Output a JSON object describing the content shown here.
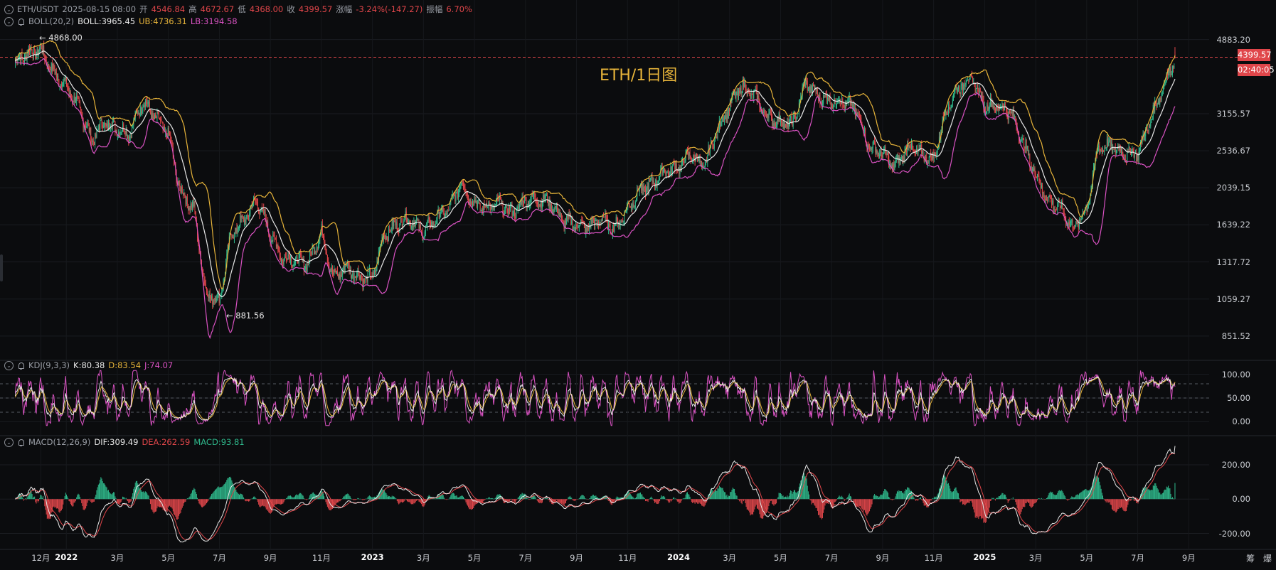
{
  "header": {
    "symbol": "ETH/USDT",
    "datetime": "2025-08-15 08:00",
    "open_label": "开",
    "open": "4546.84",
    "high_label": "高",
    "high": "4672.67",
    "low_label": "低",
    "low": "4368.00",
    "close_label": "收",
    "close": "4399.57",
    "chg_label": "涨幅",
    "chg": "-3.24%(-147.27)",
    "amp_label": "振幅",
    "amp": "6.70%"
  },
  "boll": {
    "name": "BOLL(20,2)",
    "mid": "BOLL:3965.45",
    "ub": "UB:4736.31",
    "lb": "LB:3194.58"
  },
  "kdj": {
    "name": "KDJ(9,3,3)",
    "k": "K:80.38",
    "d": "D:83.54",
    "j": "J:74.07"
  },
  "macd": {
    "name": "MACD(12,26,9)",
    "dif": "DIF:309.49",
    "dea": "DEA:262.59",
    "hist": "MACD:93.81"
  },
  "title": "ETH/1日图",
  "extremes": {
    "high": "4868.00",
    "low": "881.56"
  },
  "price_tag": "4399.57",
  "countdown_tag": "02:40:05",
  "corner_labels": [
    "筹",
    "爆"
  ],
  "colors": {
    "up": "#2fb98c",
    "down": "#e0464a",
    "boll_mid": "#e8e8e8",
    "boll_ub": "#e7b43a",
    "boll_lb": "#d952c2",
    "bg": "#0b0c0e"
  },
  "chart_data": [
    {
      "type": "candlestick",
      "pane": "main",
      "y_scale": "log",
      "y_ticks": [
        "4883.20",
        "3155.57",
        "2536.67",
        "2039.15",
        "1639.22",
        "1317.72",
        "1059.27",
        "851.52"
      ],
      "ylim": [
        760,
        5000
      ],
      "x_ticks": [
        "12月",
        "2022",
        "3月",
        "5月",
        "7月",
        "9月",
        "11月",
        "2023",
        "3月",
        "5月",
        "7月",
        "9月",
        "11月",
        "2024",
        "3月",
        "5月",
        "7月",
        "9月",
        "11月",
        "2025",
        "3月",
        "5月",
        "7月",
        "9月"
      ],
      "close_series_approx": {
        "x": [
          "2021-11-01",
          "2021-11-15",
          "2021-12-01",
          "2021-12-15",
          "2022-01-01",
          "2022-01-15",
          "2022-02-01",
          "2022-02-15",
          "2022-03-01",
          "2022-03-15",
          "2022-04-01",
          "2022-04-15",
          "2022-05-01",
          "2022-05-15",
          "2022-06-01",
          "2022-06-15",
          "2022-07-01",
          "2022-07-15",
          "2022-08-01",
          "2022-08-15",
          "2022-09-01",
          "2022-09-15",
          "2022-10-01",
          "2022-10-15",
          "2022-11-01",
          "2022-11-15",
          "2022-12-01",
          "2022-12-15",
          "2023-01-01",
          "2023-01-15",
          "2023-02-01",
          "2023-02-15",
          "2023-03-01",
          "2023-03-15",
          "2023-04-01",
          "2023-04-15",
          "2023-05-01",
          "2023-05-15",
          "2023-06-01",
          "2023-06-15",
          "2023-07-01",
          "2023-07-15",
          "2023-08-01",
          "2023-08-15",
          "2023-09-01",
          "2023-09-15",
          "2023-10-01",
          "2023-10-15",
          "2023-11-01",
          "2023-11-15",
          "2023-12-01",
          "2023-12-15",
          "2024-01-01",
          "2024-01-15",
          "2024-02-01",
          "2024-02-15",
          "2024-03-01",
          "2024-03-15",
          "2024-04-01",
          "2024-04-15",
          "2024-05-01",
          "2024-05-15",
          "2024-06-01",
          "2024-06-15",
          "2024-07-01",
          "2024-07-15",
          "2024-08-01",
          "2024-08-15",
          "2024-09-01",
          "2024-09-15",
          "2024-10-01",
          "2024-10-15",
          "2024-11-01",
          "2024-11-15",
          "2024-12-01",
          "2024-12-15",
          "2025-01-01",
          "2025-01-15",
          "2025-02-01",
          "2025-02-15",
          "2025-03-01",
          "2025-03-15",
          "2025-04-01",
          "2025-04-15",
          "2025-05-01",
          "2025-05-15",
          "2025-06-01",
          "2025-06-15",
          "2025-07-01",
          "2025-07-15",
          "2025-08-01",
          "2025-08-15"
        ],
        "y": [
          4300,
          4500,
          4600,
          4050,
          3700,
          3300,
          2700,
          3000,
          2900,
          2800,
          3400,
          3100,
          2800,
          2000,
          1800,
          1100,
          1050,
          1550,
          1700,
          1900,
          1550,
          1350,
          1330,
          1300,
          1580,
          1200,
          1280,
          1200,
          1200,
          1550,
          1650,
          1700,
          1570,
          1700,
          1800,
          2100,
          1850,
          1820,
          1860,
          1750,
          1900,
          1910,
          1860,
          1680,
          1640,
          1620,
          1700,
          1600,
          1800,
          2000,
          2100,
          2250,
          2300,
          2500,
          2300,
          2800,
          3300,
          3700,
          3500,
          3100,
          3000,
          2950,
          3800,
          3500,
          3400,
          3400,
          3200,
          2600,
          2500,
          2300,
          2600,
          2500,
          2400,
          3200,
          3700,
          3900,
          3300,
          3300,
          3200,
          2700,
          2200,
          1900,
          1800,
          1600,
          1800,
          2600,
          2600,
          2500,
          2500,
          3000,
          3700,
          4400
        ]
      }
    },
    {
      "type": "line",
      "pane": "kdj",
      "y_ticks": [
        "100.00",
        "50.00",
        "0.00"
      ],
      "ylim": [
        -10,
        110
      ],
      "last_values": {
        "K": 80.38,
        "D": 83.54,
        "J": 74.07
      }
    },
    {
      "type": "bar",
      "pane": "macd",
      "y_ticks": [
        "200.00",
        "0.00",
        "-200.00"
      ],
      "ylim": [
        -260,
        320
      ],
      "last_values": {
        "DIF": 309.49,
        "DEA": 262.59,
        "MACD": 93.81
      }
    }
  ]
}
